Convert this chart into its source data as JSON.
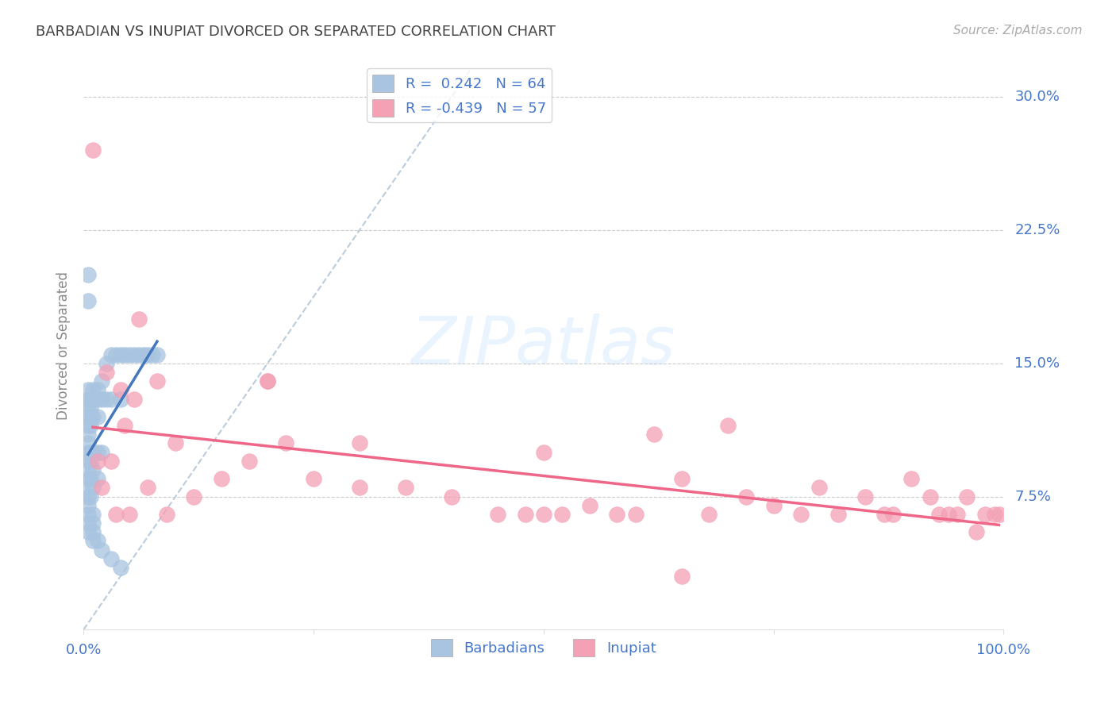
{
  "title": "BARBADIAN VS INUPIAT DIVORCED OR SEPARATED CORRELATION CHART",
  "source": "Source: ZipAtlas.com",
  "ylabel": "Divorced or Separated",
  "legend_blue": "R =  0.242   N = 64",
  "legend_pink": "R = -0.439   N = 57",
  "watermark": "ZIPatlas",
  "y_ticks": [
    0.0,
    0.075,
    0.15,
    0.225,
    0.3
  ],
  "y_tick_labels": [
    "",
    "7.5%",
    "15.0%",
    "22.5%",
    "30.0%"
  ],
  "x_lim": [
    0.0,
    1.0
  ],
  "y_lim": [
    0.0,
    0.32
  ],
  "blue_color": "#a8c4e0",
  "pink_color": "#f4a0b5",
  "blue_line_color": "#4477bb",
  "pink_line_color": "#ee6688",
  "dashed_line_color": "#bbccdd",
  "tick_label_color": "#4477cc",
  "background_color": "#ffffff",
  "blue_scatter_x": [
    0.005,
    0.005,
    0.005,
    0.005,
    0.005,
    0.005,
    0.005,
    0.005,
    0.005,
    0.005,
    0.005,
    0.005,
    0.005,
    0.005,
    0.005,
    0.005,
    0.005,
    0.008,
    0.008,
    0.008,
    0.008,
    0.008,
    0.008,
    0.008,
    0.008,
    0.01,
    0.01,
    0.01,
    0.01,
    0.01,
    0.01,
    0.01,
    0.01,
    0.015,
    0.015,
    0.015,
    0.015,
    0.015,
    0.02,
    0.02,
    0.02,
    0.025,
    0.025,
    0.03,
    0.03,
    0.035,
    0.04,
    0.04,
    0.045,
    0.05,
    0.055,
    0.06,
    0.065,
    0.07,
    0.075,
    0.08,
    0.005,
    0.005,
    0.01,
    0.01,
    0.015,
    0.02,
    0.03,
    0.04
  ],
  "blue_scatter_y": [
    0.1,
    0.105,
    0.11,
    0.115,
    0.12,
    0.125,
    0.13,
    0.135,
    0.095,
    0.09,
    0.085,
    0.08,
    0.075,
    0.07,
    0.065,
    0.06,
    0.055,
    0.13,
    0.125,
    0.12,
    0.115,
    0.1,
    0.095,
    0.085,
    0.075,
    0.135,
    0.13,
    0.12,
    0.1,
    0.09,
    0.08,
    0.065,
    0.05,
    0.135,
    0.13,
    0.12,
    0.1,
    0.085,
    0.14,
    0.13,
    0.1,
    0.15,
    0.13,
    0.155,
    0.13,
    0.155,
    0.155,
    0.13,
    0.155,
    0.155,
    0.155,
    0.155,
    0.155,
    0.155,
    0.155,
    0.155,
    0.2,
    0.185,
    0.06,
    0.055,
    0.05,
    0.045,
    0.04,
    0.035
  ],
  "pink_scatter_x": [
    0.01,
    0.015,
    0.02,
    0.025,
    0.03,
    0.035,
    0.04,
    0.045,
    0.05,
    0.055,
    0.06,
    0.07,
    0.08,
    0.09,
    0.1,
    0.12,
    0.15,
    0.18,
    0.2,
    0.22,
    0.25,
    0.3,
    0.35,
    0.4,
    0.45,
    0.48,
    0.5,
    0.52,
    0.55,
    0.58,
    0.6,
    0.62,
    0.65,
    0.68,
    0.7,
    0.72,
    0.75,
    0.78,
    0.8,
    0.82,
    0.85,
    0.87,
    0.88,
    0.9,
    0.92,
    0.93,
    0.94,
    0.95,
    0.96,
    0.97,
    0.98,
    0.99,
    0.995,
    0.2,
    0.3,
    0.5,
    0.65
  ],
  "pink_scatter_y": [
    0.27,
    0.095,
    0.08,
    0.145,
    0.095,
    0.065,
    0.135,
    0.115,
    0.065,
    0.13,
    0.175,
    0.08,
    0.14,
    0.065,
    0.105,
    0.075,
    0.085,
    0.095,
    0.14,
    0.105,
    0.085,
    0.105,
    0.08,
    0.075,
    0.065,
    0.065,
    0.1,
    0.065,
    0.07,
    0.065,
    0.065,
    0.11,
    0.085,
    0.065,
    0.115,
    0.075,
    0.07,
    0.065,
    0.08,
    0.065,
    0.075,
    0.065,
    0.065,
    0.085,
    0.075,
    0.065,
    0.065,
    0.065,
    0.075,
    0.055,
    0.065,
    0.065,
    0.065,
    0.14,
    0.08,
    0.065,
    0.03
  ]
}
